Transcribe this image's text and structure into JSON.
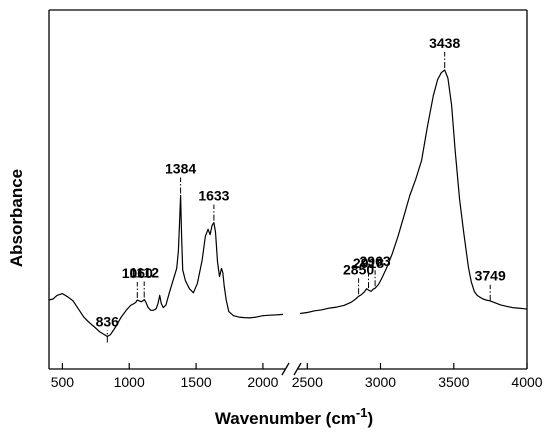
{
  "chart_data": {
    "type": "line",
    "title": "",
    "xlabel": "Wavenumber (cm",
    "xlabel_superscript": "-1",
    "xlabel_close": ")",
    "ylabel": "Absorbance",
    "y_ticks_shown": false,
    "grid": false,
    "legend": false,
    "axis_break": {
      "from": 2150,
      "to": 2450
    },
    "x_segments": [
      {
        "range": [
          400,
          2150
        ],
        "ticks": [
          500,
          1000,
          1500,
          2000
        ],
        "tick_labels": [
          "500",
          "1000",
          "1500",
          "2000"
        ]
      },
      {
        "range": [
          2450,
          4000
        ],
        "ticks": [
          2500,
          3000,
          3500,
          4000
        ],
        "tick_labels": [
          "2500",
          "3000",
          "3500",
          "4000"
        ]
      }
    ],
    "ylim": [
      0,
      1
    ],
    "series": [
      {
        "color": "#000000",
        "x": [
          400,
          430,
          460,
          500,
          540,
          580,
          620,
          660,
          700,
          740,
          780,
          820,
          836,
          860,
          900,
          940,
          980,
          1010,
          1035,
          1050,
          1060,
          1075,
          1090,
          1105,
          1112,
          1125,
          1140,
          1160,
          1180,
          1200,
          1215,
          1228,
          1240,
          1255,
          1275,
          1300,
          1330,
          1355,
          1368,
          1376,
          1384,
          1392,
          1400,
          1420,
          1450,
          1480,
          1510,
          1545,
          1570,
          1590,
          1605,
          1620,
          1633,
          1645,
          1660,
          1675,
          1690,
          1700,
          1710,
          1725,
          1745,
          1780,
          1820,
          1860,
          1900,
          1950,
          2000,
          2050,
          2100,
          2150,
          2450,
          2500,
          2550,
          2600,
          2650,
          2700,
          2750,
          2800,
          2830,
          2850,
          2870,
          2890,
          2905,
          2918,
          2935,
          2950,
          2963,
          2985,
          3010,
          3040,
          3080,
          3120,
          3160,
          3200,
          3240,
          3280,
          3320,
          3360,
          3390,
          3415,
          3438,
          3460,
          3485,
          3510,
          3540,
          3570,
          3600,
          3620,
          3640,
          3660,
          3680,
          3700,
          3720,
          3749,
          3780,
          3820,
          3860,
          3900,
          3940,
          3980,
          4000
        ],
        "y": [
          0.148,
          0.152,
          0.165,
          0.172,
          0.16,
          0.145,
          0.115,
          0.085,
          0.065,
          0.048,
          0.03,
          0.018,
          0.013,
          0.02,
          0.05,
          0.085,
          0.112,
          0.128,
          0.135,
          0.14,
          0.148,
          0.145,
          0.142,
          0.146,
          0.15,
          0.14,
          0.122,
          0.11,
          0.11,
          0.115,
          0.135,
          0.165,
          0.135,
          0.12,
          0.13,
          0.175,
          0.225,
          0.265,
          0.33,
          0.43,
          0.535,
          0.385,
          0.26,
          0.22,
          0.19,
          0.175,
          0.21,
          0.295,
          0.385,
          0.41,
          0.39,
          0.425,
          0.435,
          0.4,
          0.29,
          0.235,
          0.265,
          0.25,
          0.2,
          0.148,
          0.105,
          0.09,
          0.085,
          0.083,
          0.082,
          0.085,
          0.09,
          0.092,
          0.093,
          0.095,
          0.098,
          0.102,
          0.108,
          0.112,
          0.118,
          0.122,
          0.128,
          0.14,
          0.152,
          0.162,
          0.168,
          0.178,
          0.19,
          0.185,
          0.18,
          0.188,
          0.192,
          0.205,
          0.23,
          0.265,
          0.32,
          0.385,
          0.46,
          0.535,
          0.595,
          0.665,
          0.79,
          0.905,
          0.965,
          0.99,
          1.0,
          0.97,
          0.87,
          0.7,
          0.52,
          0.39,
          0.27,
          0.215,
          0.18,
          0.165,
          0.158,
          0.152,
          0.148,
          0.145,
          0.138,
          0.13,
          0.125,
          0.12,
          0.118,
          0.116,
          0.114
        ]
      }
    ],
    "peak_labels": [
      {
        "label": "836",
        "x": 836,
        "y": 0.013
      },
      {
        "label": "1060",
        "x": 1060,
        "y": 0.148
      },
      {
        "label": "1112",
        "x": 1112,
        "y": 0.15
      },
      {
        "label": "1384",
        "x": 1384,
        "y": 0.535
      },
      {
        "label": "1633",
        "x": 1633,
        "y": 0.435
      },
      {
        "label": "2850",
        "x": 2850,
        "y": 0.162
      },
      {
        "label": "2918",
        "x": 2918,
        "y": 0.185
      },
      {
        "label": "2963",
        "x": 2963,
        "y": 0.192
      },
      {
        "label": "3438",
        "x": 3438,
        "y": 1.0
      },
      {
        "label": "3749",
        "x": 3749,
        "y": 0.138
      }
    ]
  }
}
